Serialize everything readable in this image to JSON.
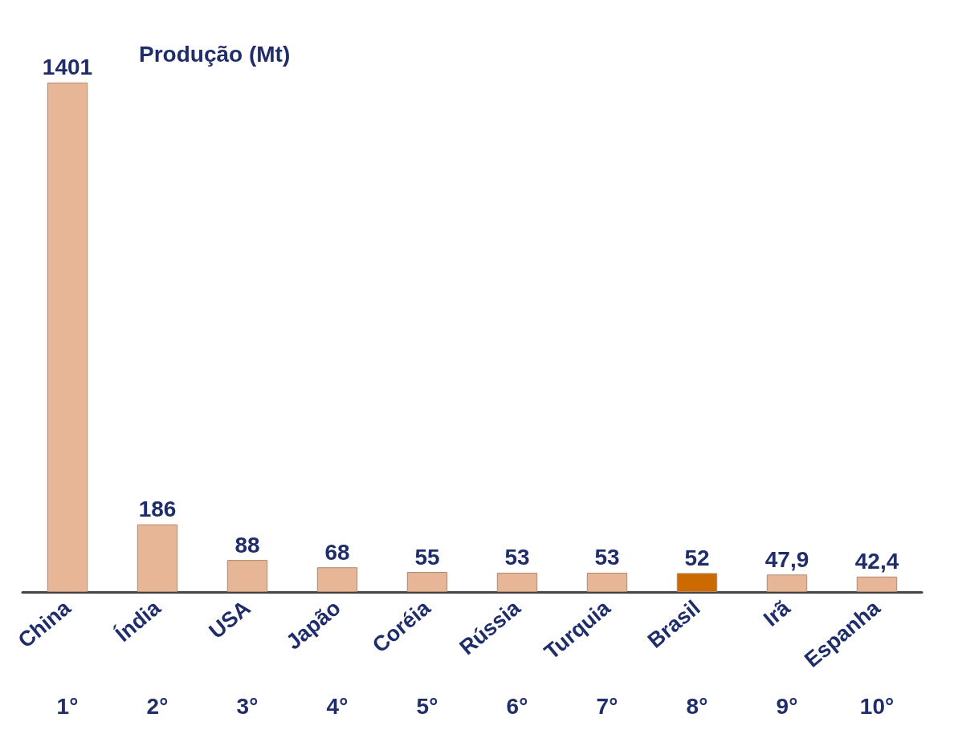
{
  "chart_data": {
    "type": "bar",
    "title": "Produção (Mt)",
    "categories": [
      "China",
      "Índia",
      "USA",
      "Japão",
      "Coréia",
      "Rússia",
      "Turquia",
      "Brasil",
      "Irã",
      "Espanha"
    ],
    "values": [
      1401,
      186,
      88,
      68,
      55,
      53,
      53,
      52,
      47.9,
      42.4
    ],
    "value_labels": [
      "1401",
      "186",
      "88",
      "68",
      "55",
      "53",
      "53",
      "52",
      "47,9",
      "42,4"
    ],
    "colors": [
      "#e6b696",
      "#e6b696",
      "#e6b696",
      "#e6b696",
      "#e6b696",
      "#e6b696",
      "#e6b696",
      "#cc6a00",
      "#e6b696",
      "#e6b696"
    ],
    "annotations": [
      "1°",
      "2°",
      "3°",
      "4°",
      "5°",
      "6°",
      "7°",
      "8°",
      "9°",
      "10°"
    ]
  }
}
